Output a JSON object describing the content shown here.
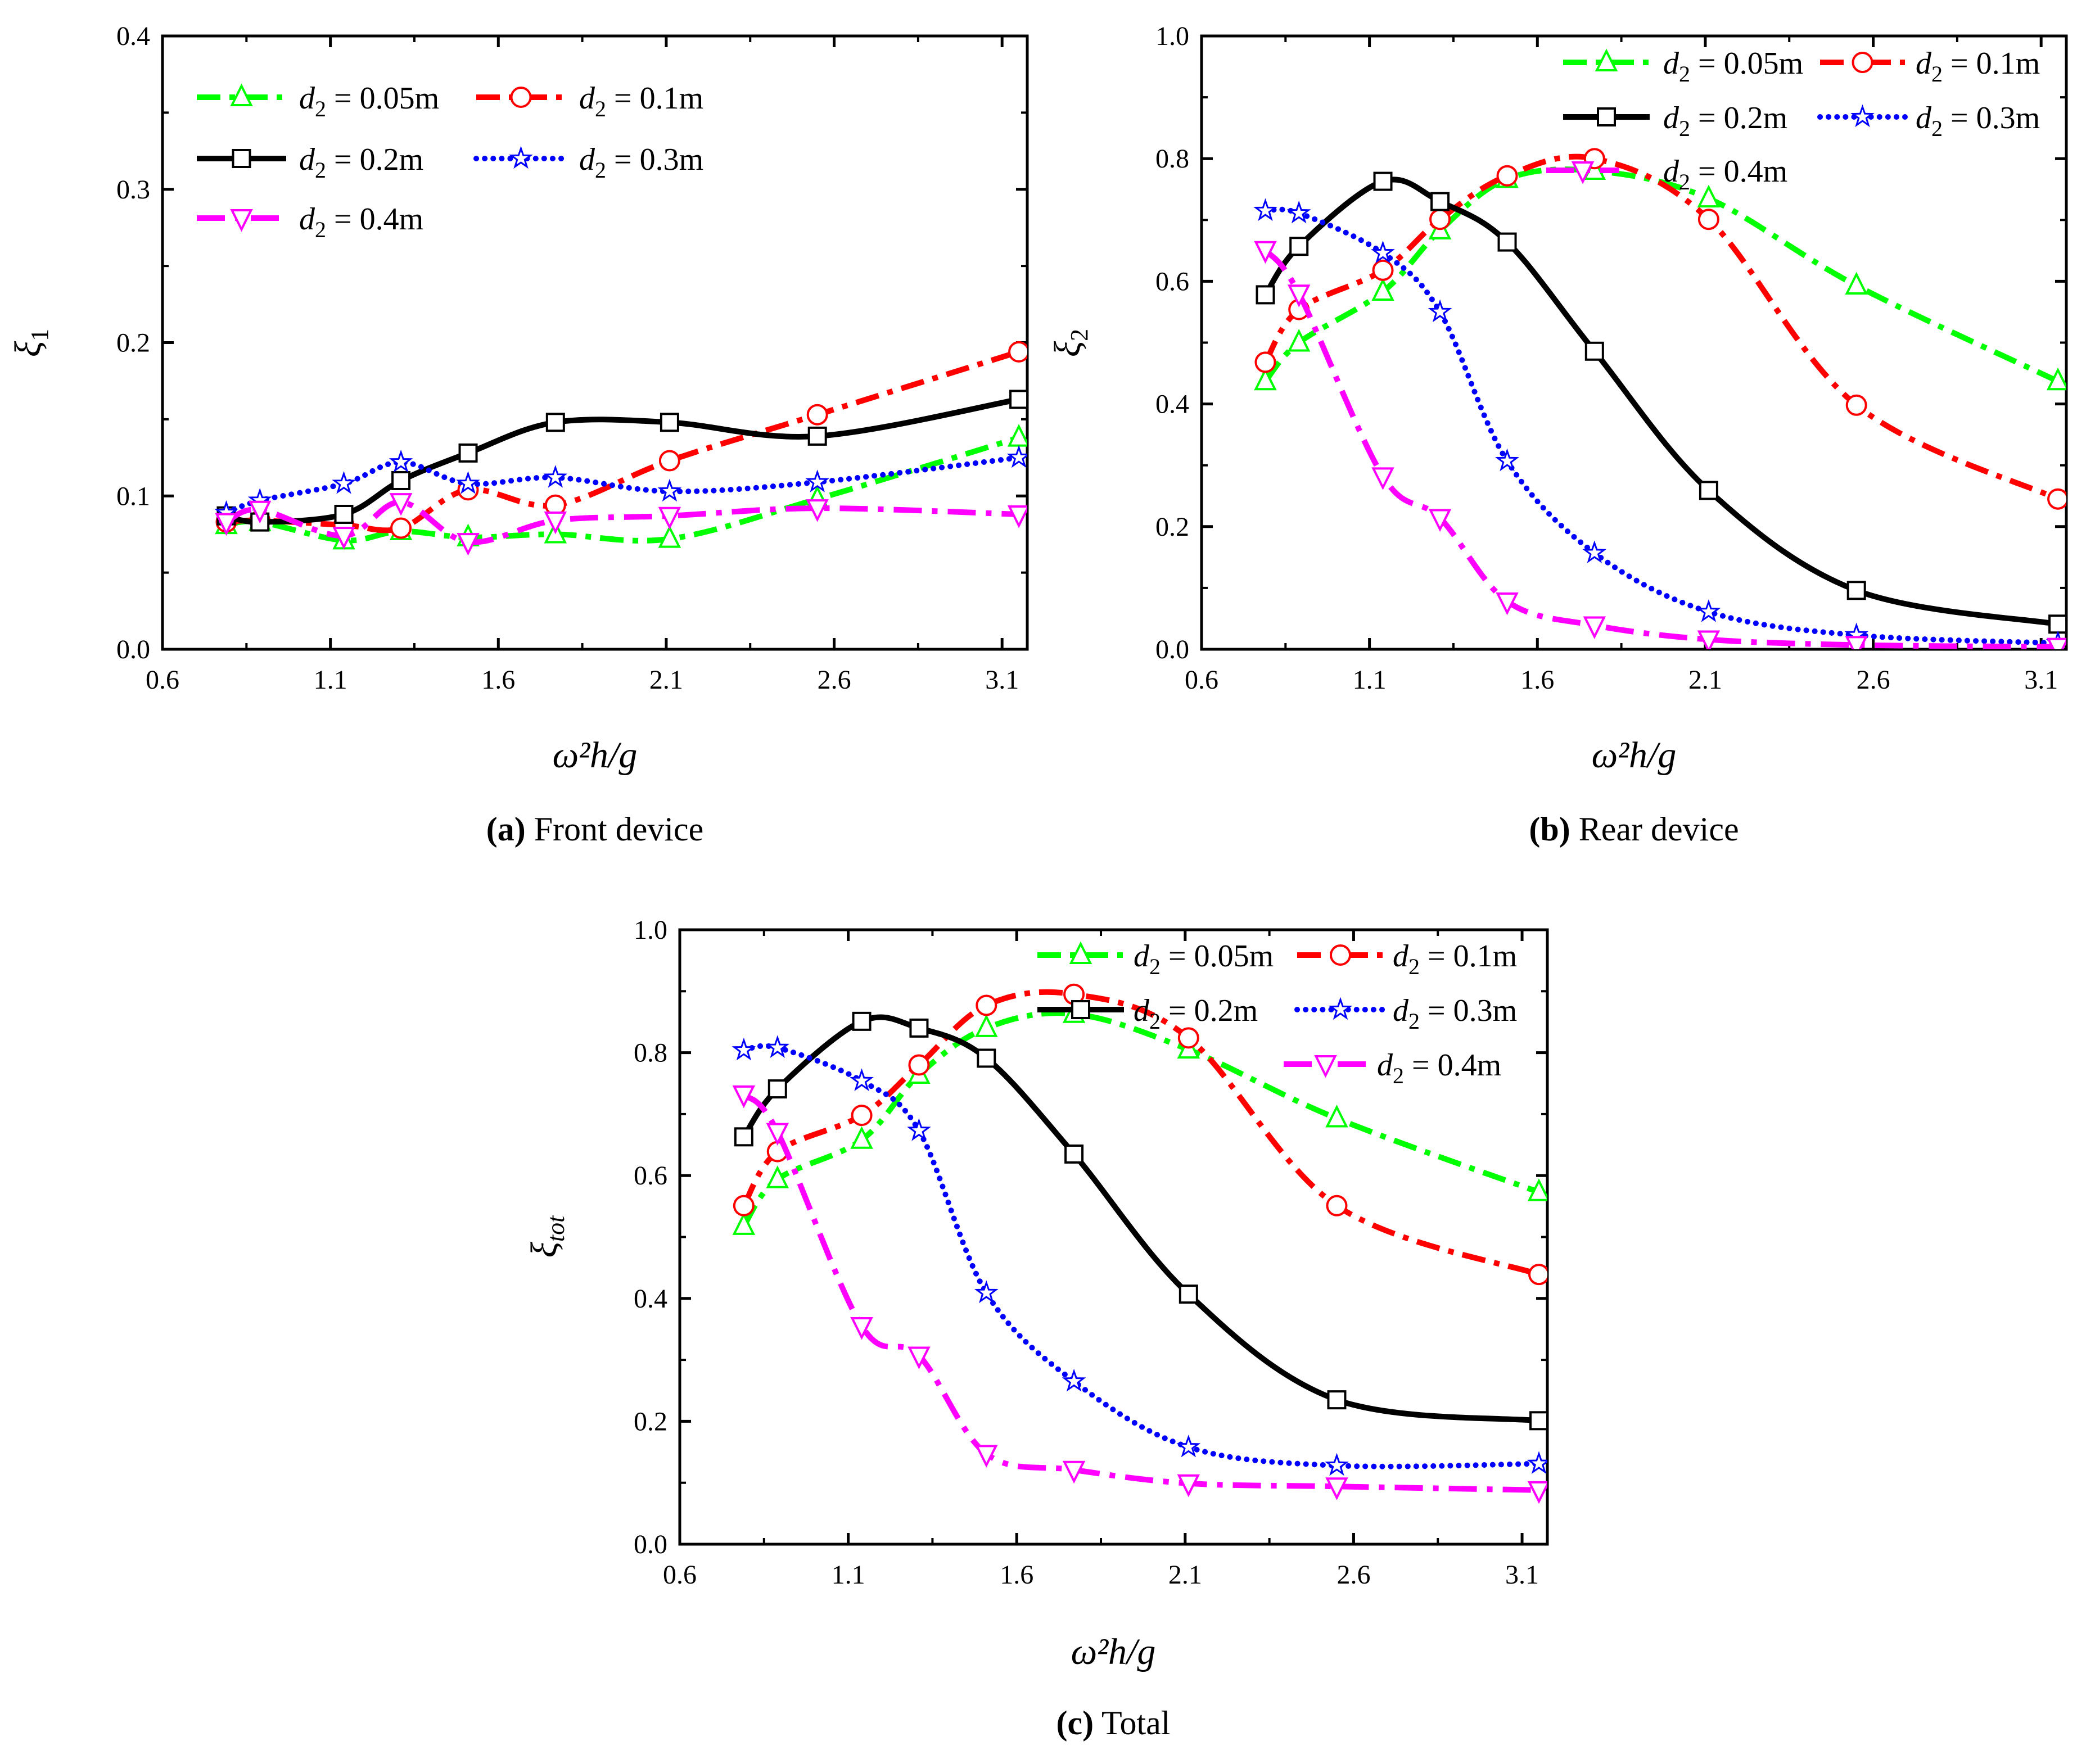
{
  "chart_data": [
    {
      "type": "line",
      "caption_letter": "(a)",
      "caption_text": " Front device",
      "xlabel": "ω²h/g",
      "ylabel": "ξ",
      "ylabel_sub": "1",
      "xlim": [
        0.6,
        3.175
      ],
      "ylim": [
        0,
        0.4
      ],
      "xticks": [
        "0.6",
        "1.1",
        "1.6",
        "2.1",
        "2.6",
        "3.1"
      ],
      "yticks": [
        "0.0",
        "0.1",
        "0.2",
        "0.3",
        "0.4"
      ],
      "legend_placement": "top-left",
      "x": [
        0.79,
        0.89,
        1.14,
        1.31,
        1.51,
        1.77,
        2.11,
        2.55,
        3.15
      ],
      "series": [
        {
          "name": "d2 = 0.05m",
          "color": "#00ff00",
          "marker": "triangle-up",
          "style": "dash-dot",
          "values": [
            0.081,
            0.083,
            0.071,
            0.077,
            0.073,
            0.075,
            0.072,
            0.098,
            0.138
          ]
        },
        {
          "name": "d2 = 0.1m",
          "color": "#ff0000",
          "marker": "circle",
          "style": "dash-dot",
          "values": [
            0.083,
            0.084,
            0.081,
            0.079,
            0.104,
            0.094,
            0.123,
            0.153,
            0.194
          ]
        },
        {
          "name": "d2 = 0.2m",
          "color": "#000000",
          "marker": "square",
          "style": "solid",
          "values": [
            0.087,
            0.083,
            0.088,
            0.11,
            0.128,
            0.148,
            0.148,
            0.139,
            0.163
          ]
        },
        {
          "name": "d2 = 0.3m",
          "color": "#0000ff",
          "marker": "star",
          "style": "dotted",
          "values": [
            0.089,
            0.097,
            0.108,
            0.122,
            0.108,
            0.112,
            0.103,
            0.109,
            0.125
          ]
        },
        {
          "name": "d2 = 0.4m",
          "color": "#ff00ff",
          "marker": "triangle-down",
          "style": "dash-dot-long",
          "values": [
            0.083,
            0.091,
            0.074,
            0.096,
            0.07,
            0.084,
            0.087,
            0.092,
            0.088
          ]
        }
      ]
    },
    {
      "type": "line",
      "caption_letter": "(b)",
      "caption_text": " Rear device",
      "xlabel": "ω²h/g",
      "ylabel": "ξ",
      "ylabel_sub": "2",
      "xlim": [
        0.6,
        3.175
      ],
      "ylim": [
        0,
        1.0
      ],
      "xticks": [
        "0.6",
        "1.1",
        "1.6",
        "2.1",
        "2.6",
        "3.1"
      ],
      "yticks": [
        "0.0",
        "0.2",
        "0.4",
        "0.6",
        "0.8",
        "1.0"
      ],
      "legend_placement": "top-right",
      "x": [
        0.79,
        0.89,
        1.14,
        1.31,
        1.51,
        1.77,
        2.11,
        2.55,
        3.15
      ],
      "series": [
        {
          "name": "d2 = 0.05m",
          "color": "#00ff00",
          "marker": "triangle-up",
          "style": "dash-dot",
          "values": [
            0.437,
            0.5,
            0.583,
            0.683,
            0.767,
            0.78,
            0.735,
            0.593,
            0.437
          ]
        },
        {
          "name": "d2 = 0.1m",
          "color": "#ff0000",
          "marker": "circle",
          "style": "dash-dot",
          "values": [
            0.468,
            0.554,
            0.618,
            0.701,
            0.772,
            0.8,
            0.701,
            0.398,
            0.245
          ]
        },
        {
          "name": "d2 = 0.2m",
          "color": "#000000",
          "marker": "square",
          "style": "solid",
          "values": [
            0.578,
            0.657,
            0.763,
            0.73,
            0.664,
            0.486,
            0.259,
            0.096,
            0.041
          ]
        },
        {
          "name": "d2 = 0.3m",
          "color": "#0000ff",
          "marker": "star",
          "style": "dotted",
          "values": [
            0.715,
            0.711,
            0.646,
            0.55,
            0.307,
            0.157,
            0.061,
            0.023,
            0.01
          ]
        },
        {
          "name": "d2 = 0.4m",
          "color": "#ff00ff",
          "marker": "triangle-down",
          "style": "dash-dot-long",
          "values": [
            0.651,
            0.58,
            0.282,
            0.214,
            0.078,
            0.039,
            0.016,
            0.007,
            0.004
          ]
        }
      ]
    },
    {
      "type": "line",
      "caption_letter": "(c)",
      "caption_text": " Total",
      "xlabel": "ω²h/g",
      "ylabel": "ξ",
      "ylabel_sub": "tot",
      "xlim": [
        0.6,
        3.175
      ],
      "ylim": [
        0,
        1.0
      ],
      "xticks": [
        "0.6",
        "1.1",
        "1.6",
        "2.1",
        "2.6",
        "3.1"
      ],
      "yticks": [
        "0.0",
        "0.2",
        "0.4",
        "0.6",
        "0.8",
        "1.0"
      ],
      "legend_placement": "top-right",
      "x": [
        0.79,
        0.89,
        1.14,
        1.31,
        1.51,
        1.77,
        2.11,
        2.55,
        3.15
      ],
      "series": [
        {
          "name": "d2 = 0.05m",
          "color": "#00ff00",
          "marker": "triangle-up",
          "style": "dash-dot",
          "values": [
            0.518,
            0.594,
            0.658,
            0.764,
            0.84,
            0.863,
            0.805,
            0.693,
            0.573
          ]
        },
        {
          "name": "d2 = 0.1m",
          "color": "#ff0000",
          "marker": "circle",
          "style": "dash-dot",
          "values": [
            0.551,
            0.639,
            0.698,
            0.78,
            0.877,
            0.895,
            0.824,
            0.551,
            0.439
          ]
        },
        {
          "name": "d2 = 0.2m",
          "color": "#000000",
          "marker": "square",
          "style": "solid",
          "values": [
            0.663,
            0.741,
            0.851,
            0.84,
            0.791,
            0.635,
            0.407,
            0.235,
            0.201
          ]
        },
        {
          "name": "d2 = 0.3m",
          "color": "#0000ff",
          "marker": "star",
          "style": "dotted",
          "values": [
            0.804,
            0.808,
            0.754,
            0.673,
            0.409,
            0.265,
            0.158,
            0.128,
            0.131
          ]
        },
        {
          "name": "d2 = 0.4m",
          "color": "#ff00ff",
          "marker": "triangle-down",
          "style": "dash-dot-long",
          "values": [
            0.732,
            0.671,
            0.355,
            0.307,
            0.147,
            0.121,
            0.099,
            0.094,
            0.088
          ]
        }
      ]
    }
  ]
}
